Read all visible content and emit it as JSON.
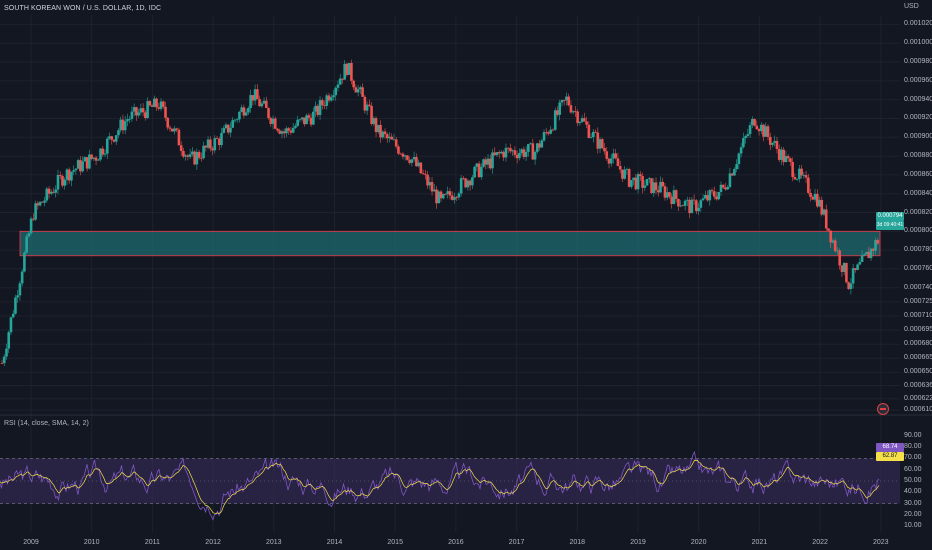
{
  "header": {
    "title": "SOUTH KOREAN WON / U.S. DOLLAR, 1D, IDC",
    "currency": "USD"
  },
  "rsi": {
    "label": "RSI (14, close, SMA, 14, 2)",
    "value": "68.74",
    "sma_value": "62.87",
    "upper_band": 70,
    "lower_band": 30
  },
  "price": {
    "current": "0.000794",
    "secondary": "3d 09:40:41",
    "zone_top": 0.0008,
    "zone_bottom": 0.000774
  },
  "price_axis_ticks": [
    "0.001020",
    "0.001000",
    "0.000980",
    "0.000960",
    "0.000940",
    "0.000920",
    "0.000900",
    "0.000880",
    "0.000860",
    "0.000840",
    "0.000820",
    "0.000800",
    "0.000780",
    "0.000760",
    "0.000740",
    "0.000725",
    "0.000710",
    "0.000695",
    "0.000680",
    "0.000665",
    "0.000650",
    "0.000636",
    "0.000622",
    "0.000610"
  ],
  "rsi_axis_ticks": [
    "90.00",
    "80.00",
    "70.00",
    "60.00",
    "50.00",
    "40.00",
    "30.00",
    "20.00",
    "10.00"
  ],
  "time_axis_ticks": [
    "2009",
    "2010",
    "2011",
    "2012",
    "2013",
    "2014",
    "2015",
    "2016",
    "2017",
    "2018",
    "2019",
    "2020",
    "2021",
    "2022",
    "2023"
  ],
  "colors": {
    "background": "#131722",
    "up": "#26a69a",
    "down": "#ef5350",
    "zone_fill": "#1f6b70",
    "zone_border": "#f23645",
    "rsi_line": "#7e57c2",
    "rsi_sma": "#f5e04a",
    "rsi_band": "#3b2b5e"
  },
  "chart_data": {
    "type": "candlestick",
    "title": "SOUTH KOREAN WON / U.S. DOLLAR, 1D, IDC",
    "x": [
      "2009",
      "2009.5",
      "2010",
      "2010.5",
      "2011",
      "2011.5",
      "2012",
      "2012.5",
      "2013",
      "2013.5",
      "2014",
      "2014.5",
      "2015",
      "2015.5",
      "2016",
      "2016.5",
      "2017",
      "2017.5",
      "2018",
      "2018.5",
      "2019",
      "2019.5",
      "2020",
      "2020.5",
      "2021",
      "2021.5",
      "2022",
      "2022.5",
      "2023"
    ],
    "series": [
      {
        "name": "",
        "values": [
          0.00066,
          0.00082,
          0.00086,
          0.00088,
          0.00092,
          0.000935,
          0.000875,
          0.0009,
          0.000945,
          0.000905,
          0.000925,
          0.000975,
          0.000905,
          0.00088,
          0.00083,
          0.00086,
          0.000885,
          0.000885,
          0.00094,
          0.000895,
          0.000855,
          0.000845,
          0.000825,
          0.000845,
          0.00092,
          0.000875,
          0.000835,
          0.000745,
          0.000794
        ]
      }
    ],
    "ylim": [
      0.00061,
      0.00103
    ],
    "xlabel": "",
    "ylabel": ""
  }
}
